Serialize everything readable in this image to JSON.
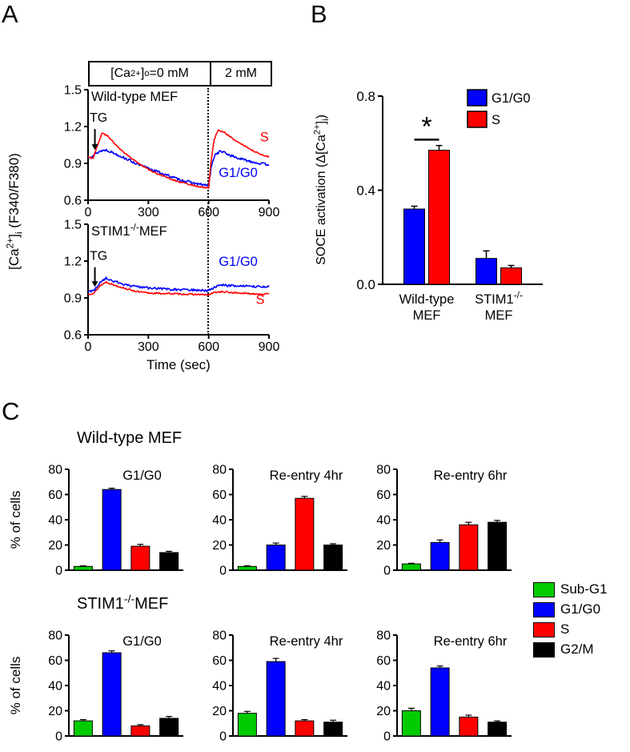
{
  "panelA": {
    "label": "A",
    "header": {
      "left": "[Ca^{2+}]_{o}=0 mM",
      "right": "2 mM"
    },
    "y_axis_label": "[Ca^{2+}]_{i} (F340/F380)",
    "x_axis_label": "Time (sec)"
  },
  "panelB": {
    "label": "B",
    "y_axis_label": "SOCE activation (Δ[Ca^{2+}]_{i})"
  },
  "panelC": {
    "label": "C",
    "row1_title": "Wild-type MEF",
    "row2_title": "STIM1^{-/-}MEF",
    "y_axis_label": "% of cells",
    "legend": [
      {
        "label": "Sub-G1",
        "color": "#00cc00"
      },
      {
        "label": "G1/G0",
        "color": "#0000ff"
      },
      {
        "label": "S",
        "color": "#ff0000"
      },
      {
        "label": "G2/M",
        "color": "#000000"
      }
    ]
  },
  "chart_data": [
    {
      "id": "wt-trace",
      "type": "line",
      "title": "Wild-type MEF",
      "xlabel": "Time (sec)",
      "ylabel": "[Ca^{2+}]_{i} (F340/F380)",
      "xlim": [
        0,
        900
      ],
      "ylim": [
        0.6,
        1.5
      ],
      "x_ticks": [
        0,
        300,
        600,
        900
      ],
      "y_ticks": [
        0.6,
        0.9,
        1.2,
        1.5
      ],
      "vline": 600,
      "series": [
        {
          "name": "G1/G0",
          "color": "#0000ff",
          "noise": 0.01,
          "points": [
            [
              0,
              0.95
            ],
            [
              30,
              0.97
            ],
            [
              60,
              1.0
            ],
            [
              90,
              1.01
            ],
            [
              120,
              0.99
            ],
            [
              160,
              0.96
            ],
            [
              200,
              0.93
            ],
            [
              250,
              0.89
            ],
            [
              300,
              0.86
            ],
            [
              350,
              0.83
            ],
            [
              400,
              0.8
            ],
            [
              450,
              0.77
            ],
            [
              500,
              0.75
            ],
            [
              550,
              0.73
            ],
            [
              600,
              0.72
            ],
            [
              612,
              0.86
            ],
            [
              630,
              0.97
            ],
            [
              660,
              1.0
            ],
            [
              700,
              0.97
            ],
            [
              750,
              0.94
            ],
            [
              800,
              0.92
            ],
            [
              850,
              0.9
            ],
            [
              900,
              0.89
            ]
          ]
        },
        {
          "name": "S",
          "color": "#ff0000",
          "noise": 0.005,
          "points": [
            [
              0,
              0.95
            ],
            [
              25,
              0.94
            ],
            [
              45,
              1.04
            ],
            [
              70,
              1.15
            ],
            [
              100,
              1.12
            ],
            [
              150,
              1.03
            ],
            [
              200,
              0.96
            ],
            [
              250,
              0.9
            ],
            [
              300,
              0.85
            ],
            [
              350,
              0.81
            ],
            [
              400,
              0.78
            ],
            [
              450,
              0.75
            ],
            [
              500,
              0.73
            ],
            [
              550,
              0.71
            ],
            [
              600,
              0.7
            ],
            [
              612,
              0.92
            ],
            [
              628,
              1.1
            ],
            [
              648,
              1.17
            ],
            [
              680,
              1.15
            ],
            [
              720,
              1.1
            ],
            [
              760,
              1.06
            ],
            [
              800,
              1.02
            ],
            [
              850,
              0.98
            ],
            [
              900,
              0.95
            ]
          ]
        }
      ],
      "annotations": [
        {
          "text": "TG",
          "x": 8,
          "y": 1.24,
          "arrow": {
            "x": 34,
            "y1": 1.18,
            "y2": 1.01
          }
        }
      ],
      "labels": [
        {
          "text": "S",
          "x": 855,
          "y": 1.08,
          "color": "#ff0000"
        },
        {
          "text": "G1/G0",
          "x": 650,
          "y": 0.79,
          "color": "#0000ff"
        }
      ]
    },
    {
      "id": "stim1-trace",
      "type": "line",
      "title": "STIM1^{-/-}MEF",
      "xlabel": "Time (sec)",
      "ylabel": "[Ca^{2+}]_{i} (F340/F380)",
      "xlim": [
        0,
        900
      ],
      "ylim": [
        0.6,
        1.5
      ],
      "x_ticks": [
        0,
        300,
        600,
        900
      ],
      "y_ticks": [
        0.6,
        0.9,
        1.2,
        1.5
      ],
      "vline": 600,
      "series": [
        {
          "name": "S",
          "color": "#ff0000",
          "noise": 0.006,
          "points": [
            [
              0,
              0.93
            ],
            [
              30,
              0.94
            ],
            [
              60,
              1.0
            ],
            [
              90,
              1.03
            ],
            [
              120,
              1.01
            ],
            [
              160,
              0.99
            ],
            [
              200,
              0.97
            ],
            [
              250,
              0.95
            ],
            [
              300,
              0.94
            ],
            [
              400,
              0.935
            ],
            [
              500,
              0.93
            ],
            [
              600,
              0.925
            ],
            [
              630,
              0.945
            ],
            [
              660,
              0.95
            ],
            [
              700,
              0.945
            ],
            [
              800,
              0.935
            ],
            [
              900,
              0.93
            ]
          ]
        },
        {
          "name": "G1/G0",
          "color": "#0000ff",
          "noise": 0.009,
          "points": [
            [
              0,
              0.95
            ],
            [
              30,
              0.96
            ],
            [
              60,
              1.03
            ],
            [
              90,
              1.06
            ],
            [
              120,
              1.04
            ],
            [
              160,
              1.02
            ],
            [
              200,
              1.0
            ],
            [
              250,
              0.99
            ],
            [
              300,
              0.98
            ],
            [
              400,
              0.97
            ],
            [
              500,
              0.965
            ],
            [
              600,
              0.96
            ],
            [
              630,
              0.99
            ],
            [
              660,
              1.005
            ],
            [
              700,
              1.0
            ],
            [
              800,
              0.995
            ],
            [
              900,
              0.99
            ]
          ]
        }
      ],
      "annotations": [
        {
          "text": "TG",
          "x": 8,
          "y": 1.21,
          "arrow": {
            "x": 34,
            "y1": 1.15,
            "y2": 0.99
          }
        }
      ],
      "labels": [
        {
          "text": "G1/G0",
          "x": 650,
          "y": 1.16,
          "color": "#0000ff"
        },
        {
          "text": "S",
          "x": 835,
          "y": 0.85,
          "color": "#ff0000"
        }
      ]
    },
    {
      "id": "soce-bar",
      "type": "grouped_bar",
      "ylabel": "SOCE activation (Δ[Ca^{2+}]_{i})",
      "ylim": [
        0,
        0.8
      ],
      "y_ticks": [
        0,
        0.4,
        0.8
      ],
      "series": [
        {
          "name": "G1/G0",
          "color": "#0000ff"
        },
        {
          "name": "S",
          "color": "#ff0000"
        }
      ],
      "groups": [
        {
          "label_lines": [
            "Wild-type",
            "MEF"
          ],
          "values": [
            0.32,
            0.57
          ],
          "errors": [
            0.012,
            0.02
          ]
        },
        {
          "label_lines": [
            "STIM1^{-/-}",
            "MEF"
          ],
          "values": [
            0.11,
            0.07
          ],
          "errors": [
            0.032,
            0.01
          ]
        }
      ],
      "significance": {
        "group": 0,
        "symbol": "*"
      }
    },
    {
      "id": "wt-g1g0",
      "type": "bar",
      "title": "G1/G0",
      "ylabel": "% of cells",
      "ylim": [
        0,
        80
      ],
      "y_ticks": [
        0,
        20,
        40,
        60,
        80
      ],
      "categories": [
        "Sub-G1",
        "G1/G0",
        "S",
        "G2/M"
      ],
      "colors": [
        "#00cc00",
        "#0000ff",
        "#ff0000",
        "#000000"
      ],
      "values": [
        3,
        64,
        19,
        14
      ],
      "errors": [
        0.5,
        1,
        1.5,
        1
      ]
    },
    {
      "id": "wt-re4",
      "type": "bar",
      "title": "Re-entry 4hr",
      "ylabel": "% of cells",
      "ylim": [
        0,
        80
      ],
      "y_ticks": [
        0,
        20,
        40,
        60,
        80
      ],
      "categories": [
        "Sub-G1",
        "G1/G0",
        "S",
        "G2/M"
      ],
      "colors": [
        "#00cc00",
        "#0000ff",
        "#ff0000",
        "#000000"
      ],
      "values": [
        3,
        20,
        57,
        20
      ],
      "errors": [
        0.5,
        1.5,
        1.5,
        1
      ]
    },
    {
      "id": "wt-re6",
      "type": "bar",
      "title": "Re-entry 6hr",
      "ylabel": "% of cells",
      "ylim": [
        0,
        80
      ],
      "y_ticks": [
        0,
        20,
        40,
        60,
        80
      ],
      "categories": [
        "Sub-G1",
        "G1/G0",
        "S",
        "G2/M"
      ],
      "colors": [
        "#00cc00",
        "#0000ff",
        "#ff0000",
        "#000000"
      ],
      "values": [
        5,
        22,
        36,
        38
      ],
      "errors": [
        0.5,
        2,
        2,
        1.5
      ]
    },
    {
      "id": "ko-g1g0",
      "type": "bar",
      "title": "G1/G0",
      "ylabel": "% of cells",
      "ylim": [
        0,
        80
      ],
      "y_ticks": [
        0,
        20,
        40,
        60,
        80
      ],
      "categories": [
        "Sub-G1",
        "G1/G0",
        "S",
        "G2/M"
      ],
      "colors": [
        "#00cc00",
        "#0000ff",
        "#ff0000",
        "#000000"
      ],
      "values": [
        12,
        66,
        8,
        14
      ],
      "errors": [
        1,
        1.5,
        1,
        1.5
      ]
    },
    {
      "id": "ko-re4",
      "type": "bar",
      "title": "Re-entry 4hr",
      "ylabel": "% of cells",
      "ylim": [
        0,
        80
      ],
      "y_ticks": [
        0,
        20,
        40,
        60,
        80
      ],
      "categories": [
        "Sub-G1",
        "G1/G0",
        "S",
        "G2/M"
      ],
      "colors": [
        "#00cc00",
        "#0000ff",
        "#ff0000",
        "#000000"
      ],
      "values": [
        18,
        59,
        12,
        11
      ],
      "errors": [
        1.5,
        2.5,
        1,
        1.5
      ]
    },
    {
      "id": "ko-re6",
      "type": "bar",
      "title": "Re-entry 6hr",
      "ylabel": "% of cells",
      "ylim": [
        0,
        80
      ],
      "y_ticks": [
        0,
        20,
        40,
        60,
        80
      ],
      "categories": [
        "Sub-G1",
        "G1/G0",
        "S",
        "G2/M"
      ],
      "colors": [
        "#00cc00",
        "#0000ff",
        "#ff0000",
        "#000000"
      ],
      "values": [
        20,
        54,
        15,
        11
      ],
      "errors": [
        2,
        1.5,
        1.5,
        1
      ]
    }
  ]
}
